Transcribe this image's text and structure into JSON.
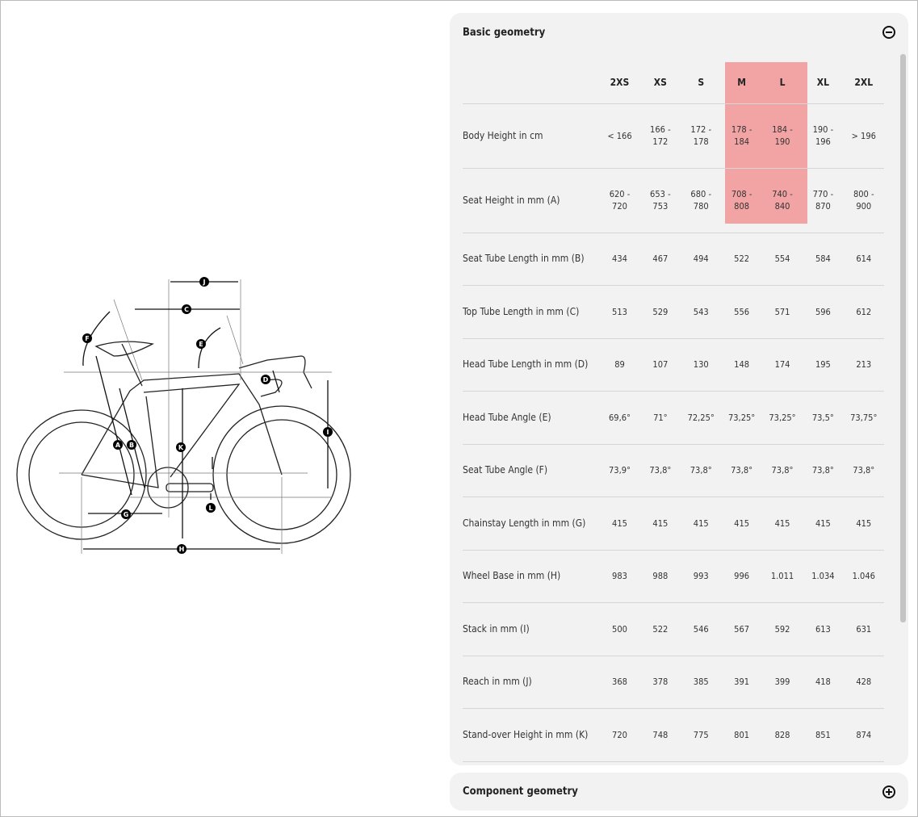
{
  "basic_geometry": {
    "title": "Basic geometry",
    "toggle_icon": "minus-circle-icon",
    "highlight_color": "#f2a3a3",
    "highlighted_sizes": [
      "M",
      "L"
    ],
    "sizes": [
      "2XS",
      "XS",
      "S",
      "M",
      "L",
      "XL",
      "2XL"
    ],
    "rows": [
      {
        "label": "Body Height in cm",
        "values": [
          "< 166",
          "166 -\n172",
          "172 -\n178",
          "178 -\n184",
          "184 -\n190",
          "190 -\n196",
          "> 196"
        ]
      },
      {
        "label": "Seat Height in mm (A)",
        "values": [
          "620 -\n720",
          "653 -\n753",
          "680 -\n780",
          "708 -\n808",
          "740 -\n840",
          "770 -\n870",
          "800 -\n900"
        ]
      },
      {
        "label": "Seat Tube Length in mm (B)",
        "values": [
          "434",
          "467",
          "494",
          "522",
          "554",
          "584",
          "614"
        ]
      },
      {
        "label": "Top Tube Length in mm (C)",
        "values": [
          "513",
          "529",
          "543",
          "556",
          "571",
          "596",
          "612"
        ]
      },
      {
        "label": "Head Tube Length in mm (D)",
        "values": [
          "89",
          "107",
          "130",
          "148",
          "174",
          "195",
          "213"
        ]
      },
      {
        "label": "Head Tube Angle (E)",
        "values": [
          "69,6°",
          "71°",
          "72,25°",
          "73,25°",
          "73,25°",
          "73,5°",
          "73,75°"
        ]
      },
      {
        "label": "Seat Tube Angle (F)",
        "values": [
          "73,9°",
          "73,8°",
          "73,8°",
          "73,8°",
          "73,8°",
          "73,8°",
          "73,8°"
        ]
      },
      {
        "label": "Chainstay Length in mm (G)",
        "values": [
          "415",
          "415",
          "415",
          "415",
          "415",
          "415",
          "415"
        ]
      },
      {
        "label": "Wheel Base in mm (H)",
        "values": [
          "983",
          "988",
          "993",
          "996",
          "1.011",
          "1.034",
          "1.046"
        ]
      },
      {
        "label": "Stack in mm (I)",
        "values": [
          "500",
          "522",
          "546",
          "567",
          "592",
          "613",
          "631"
        ]
      },
      {
        "label": "Reach in mm (J)",
        "values": [
          "368",
          "378",
          "385",
          "391",
          "399",
          "418",
          "428"
        ]
      },
      {
        "label": "Stand-over Height in mm (K)",
        "values": [
          "720",
          "748",
          "775",
          "801",
          "828",
          "851",
          "874"
        ]
      }
    ]
  },
  "component_geometry": {
    "title": "Component geometry",
    "toggle_icon": "plus-circle-icon"
  },
  "diagram": {
    "markers": [
      "A",
      "B",
      "C",
      "D",
      "E",
      "F",
      "G",
      "H",
      "I",
      "J",
      "K",
      "L"
    ]
  }
}
